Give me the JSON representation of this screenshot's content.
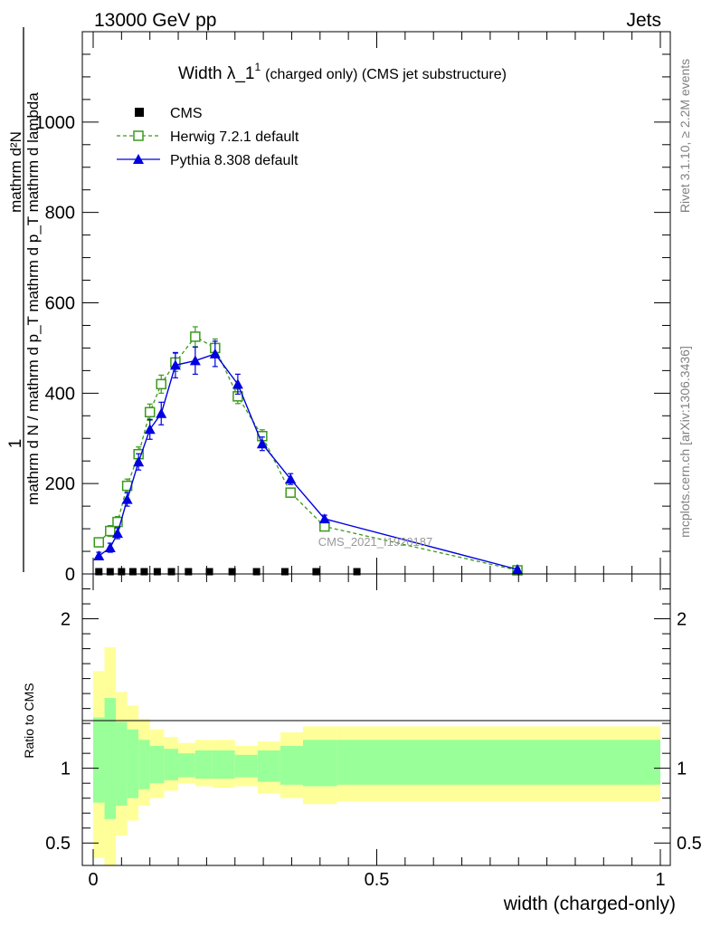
{
  "header": {
    "left": "13000 GeV pp",
    "right": "Jets"
  },
  "side": {
    "rivet": "Rivet 3.1.10, ≥ 2.2M events",
    "mcplots": "mcplots.cern.ch [arXiv:1306.3436]"
  },
  "colors": {
    "herwig": "#3a9a1a",
    "pythia": "#0000e0",
    "data": "#000000",
    "band_inner": "#99ff99",
    "band_outer": "#ffff99"
  },
  "chart_data": [
    {
      "type": "line",
      "title": "Width λ_1",
      "title_sup": "1",
      "title_tail": "(charged only) (CMS jet substructure)",
      "watermark": "CMS_2021_I1920187",
      "ylabel_top": "1",
      "ylabel_den": "mathrm d N / mathrm d p_T mathrm d p_T mathrm d lambda",
      "ylabel_num": "mathrm d²N",
      "xlim": [
        0,
        1
      ],
      "ylim": [
        0,
        1200
      ],
      "yticks": [
        0,
        200,
        400,
        600,
        800,
        1000
      ],
      "ytick_labels": [
        "0",
        "200",
        "400",
        "600",
        "800",
        "1000"
      ],
      "legend_position": "top-left",
      "series": [
        {
          "name": "CMS",
          "marker": "square",
          "x": [
            0.01,
            0.03,
            0.05,
            0.07,
            0.09,
            0.113,
            0.138,
            0.168,
            0.205,
            0.245,
            0.288,
            0.338,
            0.393,
            0.465
          ],
          "y": [
            3,
            3,
            3,
            3,
            3,
            3,
            3,
            3,
            3,
            3,
            3,
            3,
            3,
            3
          ]
        },
        {
          "name": "Herwig 7.2.1 default",
          "marker": "open-square",
          "x": [
            0.01,
            0.03,
            0.043,
            0.06,
            0.08,
            0.1,
            0.12,
            0.145,
            0.18,
            0.215,
            0.255,
            0.298,
            0.348,
            0.408,
            0.748
          ],
          "y": [
            70,
            95,
            115,
            195,
            265,
            358,
            420,
            468,
            525,
            500,
            393,
            305,
            180,
            105,
            8
          ],
          "err": [
            10,
            12,
            12,
            15,
            16,
            18,
            20,
            20,
            22,
            20,
            16,
            14,
            10,
            8,
            3
          ]
        },
        {
          "name": "Pythia 8.308 default",
          "marker": "triangle",
          "x": [
            0.01,
            0.03,
            0.043,
            0.06,
            0.08,
            0.1,
            0.12,
            0.145,
            0.18,
            0.215,
            0.255,
            0.298,
            0.348,
            0.408,
            0.748
          ],
          "y": [
            40,
            58,
            90,
            165,
            248,
            320,
            355,
            462,
            472,
            487,
            420,
            288,
            210,
            122,
            10
          ],
          "err": [
            8,
            10,
            12,
            15,
            18,
            22,
            25,
            28,
            30,
            28,
            22,
            15,
            12,
            8,
            3
          ]
        }
      ]
    },
    {
      "type": "area",
      "ylabel": "Ratio to CMS",
      "xlabel": "width (charged-only)",
      "xlim": [
        0,
        1
      ],
      "ylim": [
        0.35,
        2.3
      ],
      "xticks": [
        0,
        0.5,
        1
      ],
      "xtick_labels": [
        "0",
        "0.5",
        "1"
      ],
      "yticks": [
        0.5,
        1,
        2
      ],
      "ytick_labels": [
        "0.5",
        "1",
        "2"
      ],
      "bins_x": [
        0,
        0.02,
        0.04,
        0.06,
        0.08,
        0.1,
        0.125,
        0.15,
        0.18,
        0.21,
        0.25,
        0.29,
        0.33,
        0.37,
        0.43,
        1.0
      ],
      "bands": {
        "outer_low": [
          0.4,
          0.35,
          0.55,
          0.65,
          0.75,
          0.8,
          0.85,
          0.9,
          0.88,
          0.87,
          0.88,
          0.83,
          0.8,
          0.76,
          0.78
        ],
        "outer_high": [
          1.65,
          1.81,
          1.51,
          1.42,
          1.33,
          1.26,
          1.21,
          1.17,
          1.19,
          1.19,
          1.15,
          1.18,
          1.24,
          1.28,
          1.28
        ],
        "inner_low": [
          0.77,
          0.66,
          0.75,
          0.8,
          0.86,
          0.9,
          0.92,
          0.94,
          0.93,
          0.93,
          0.94,
          0.91,
          0.89,
          0.88,
          0.89
        ],
        "inner_high": [
          1.34,
          1.47,
          1.31,
          1.26,
          1.19,
          1.15,
          1.13,
          1.1,
          1.12,
          1.12,
          1.09,
          1.12,
          1.15,
          1.19,
          1.19
        ]
      }
    }
  ]
}
